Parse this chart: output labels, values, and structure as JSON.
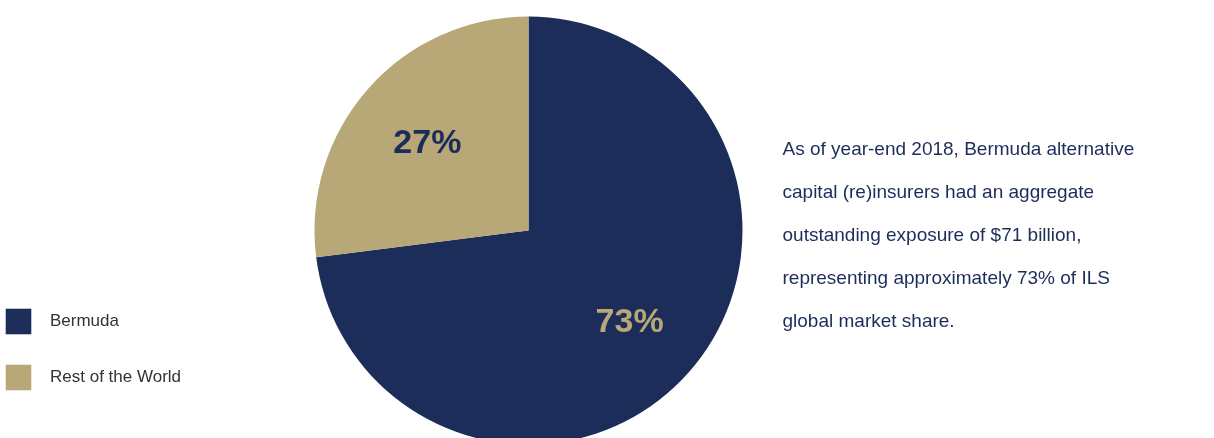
{
  "chart_data": {
    "type": "pie",
    "categories": [
      "Bermuda",
      "Rest of the World"
    ],
    "values": [
      73,
      27
    ],
    "colors": [
      "#1c2d5a",
      "#b8a878"
    ],
    "value_labels": [
      "73%",
      "27%"
    ],
    "legend": "bottom left",
    "annotations": [
      "As of year-end 2018, Bermuda alternative capital (re)insurers had an aggregate outstanding exposure of $71 billion, representing approximately 73% of ILS global market share."
    ]
  }
}
